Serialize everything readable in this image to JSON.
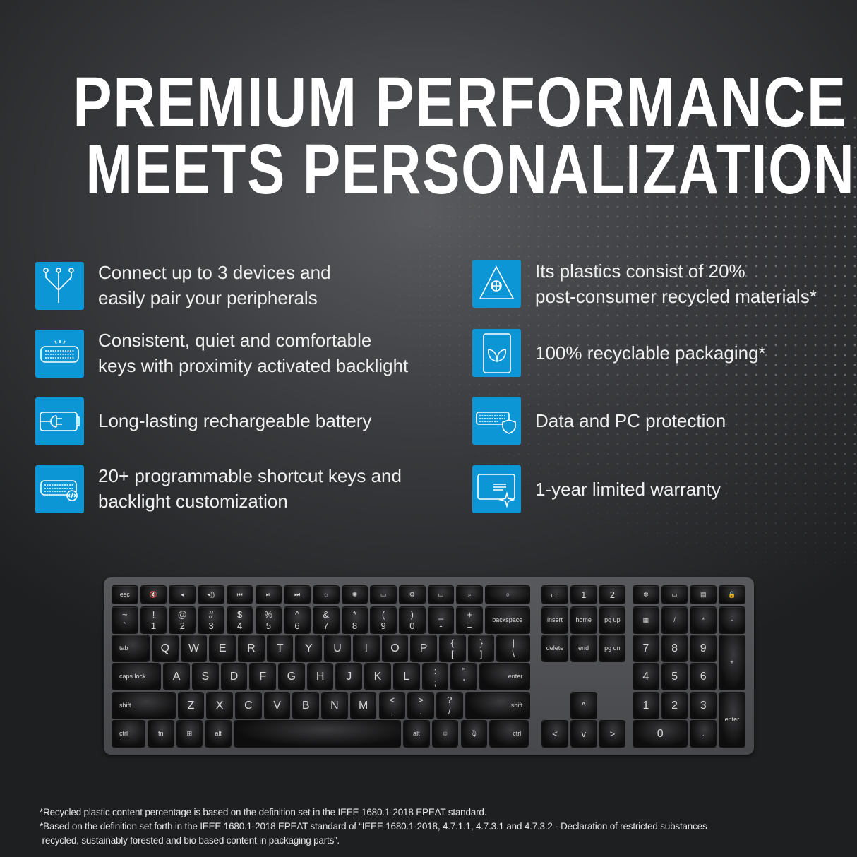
{
  "headline": {
    "line1": "PREMIUM PERFORMANCE",
    "line2": "MEETS PERSONALIZATION"
  },
  "colors": {
    "tile": "#0c96d6",
    "background": "#2e2f31",
    "text": "#ffffff"
  },
  "features_left": [
    {
      "icon": "multi-device-icon",
      "line1": "Connect up to 3 devices and",
      "line2": "easily pair your peripherals"
    },
    {
      "icon": "backlit-keyboard-icon",
      "line1": "Consistent, quiet and comfortable",
      "line2": "keys with proximity activated backlight"
    },
    {
      "icon": "battery-plug-icon",
      "line1": "Long-lasting rechargeable battery",
      "line2": ""
    },
    {
      "icon": "keyboard-code-icon",
      "line1": "20+ programmable shortcut keys and",
      "line2": "backlight customization"
    }
  ],
  "features_right": [
    {
      "icon": "recycle-globe-icon",
      "line1": "Its plastics consist of 20%",
      "line2": "post-consumer recycled materials*"
    },
    {
      "icon": "leaf-packaging-icon",
      "line1": "100% recyclable packaging*",
      "line2": ""
    },
    {
      "icon": "keyboard-shield-icon",
      "line1": "Data and PC protection",
      "line2": ""
    },
    {
      "icon": "warranty-certificate-icon",
      "line1": "1-year limited warranty",
      "line2": ""
    }
  ],
  "keyboard": {
    "main_rows": [
      [
        "esc",
        "🔇",
        "◂",
        "◂))",
        "⏮",
        "⏯",
        "⏭",
        "☼",
        "✺",
        "▭",
        "⚙",
        "▭",
        "⌕",
        "⌽"
      ],
      [
        "~\n`",
        "!\n1",
        "@\n2",
        "#\n3",
        "$\n4",
        "%\n5",
        "^\n6",
        "&\n7",
        "*\n8",
        "(\n9",
        ")\n0",
        "_\n-",
        "+\n=",
        "backspace"
      ],
      [
        "tab",
        "Q",
        "W",
        "E",
        "R",
        "T",
        "Y",
        "U",
        "I",
        "O",
        "P",
        "{\n[",
        "}\n]",
        "|\n\\"
      ],
      [
        "caps lock",
        "A",
        "S",
        "D",
        "F",
        "G",
        "H",
        "J",
        "K",
        "L",
        ":\n;",
        "\"\n'",
        "enter"
      ],
      [
        "shift",
        "Z",
        "X",
        "C",
        "V",
        "B",
        "N",
        "M",
        "<\n,",
        ">\n.",
        "?\n/",
        "shift"
      ],
      [
        "ctrl",
        "fn",
        "⊞",
        "alt",
        "",
        "alt",
        "☺",
        "🎙",
        "ctrl"
      ]
    ],
    "nav_keys": [
      "▭",
      "1",
      "2",
      "insert",
      "home",
      "pg up",
      "delete",
      "end",
      "pg dn",
      "^",
      "<",
      "v",
      ">"
    ],
    "numpad_keys": [
      "✲",
      "▭",
      "▤",
      "🔒",
      "▦",
      "/",
      "*",
      "-",
      "7",
      "8",
      "9",
      "+",
      "4",
      "5",
      "6",
      "1",
      "2",
      "3",
      "enter",
      "0",
      "."
    ]
  },
  "footnotes": [
    "*Recycled plastic content percentage is based on the definition set in the IEEE 1680.1-2018 EPEAT standard.",
    "*Based on the definition set forth in the IEEE 1680.1-2018 EPEAT standard of “IEEE 1680.1-2018, 4.7.1.1, 4.7.3.1 and 4.7.3.2 - Declaration of restricted substances",
    " recycled, sustainably forested and bio based content in packaging parts”."
  ]
}
